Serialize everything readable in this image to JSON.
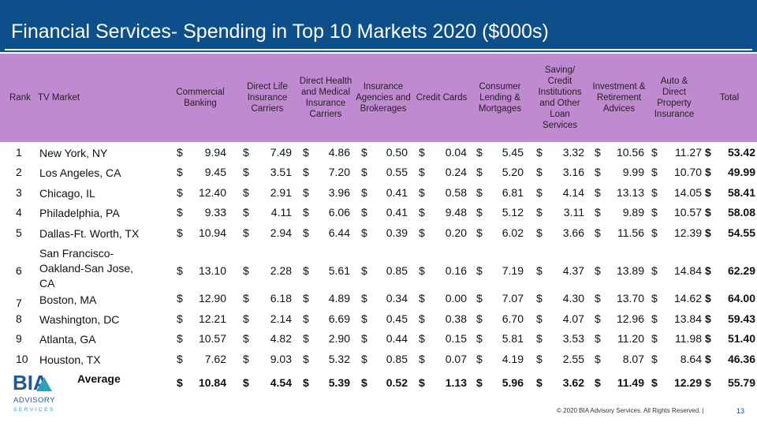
{
  "title": "Financial Services- Spending in Top 10 Markets 2020 ($000s)",
  "headers": {
    "rank": "Rank",
    "market": "TV Market",
    "commercial_banking": "Commercial\nBanking",
    "direct_life": "Direct Life\nInsurance\nCarriers",
    "direct_health": "Direct Health\nand Medical\nInsurance\nCarriers",
    "insurance_agencies": "Insurance\nAgencies and\nBrokerages",
    "credit_cards": "Credit Cards",
    "consumer_lending": "Consumer\nLending &\nMortgages",
    "saving_credit": "Saving/\nCredit\nInstitutions\nand Other\nLoan\nServices",
    "investment": "Investment &\nRetirement\nAdvices",
    "auto_home": "Auto &\nDirect\nProperty\nInsurance",
    "total": "Total"
  },
  "currency": "$",
  "rows": [
    {
      "rank": "1",
      "market": "New York, NY",
      "values": [
        "9.94",
        "7.49",
        "4.86",
        "0.50",
        "0.04",
        "5.45",
        "3.32",
        "10.56",
        "11.27"
      ],
      "total": "53.42"
    },
    {
      "rank": "2",
      "market": "Los Angeles, CA",
      "values": [
        "9.45",
        "3.51",
        "7.20",
        "0.55",
        "0.24",
        "5.20",
        "3.16",
        "9.99",
        "10.70"
      ],
      "total": "49.99"
    },
    {
      "rank": "3",
      "market": "Chicago, IL",
      "values": [
        "12.40",
        "2.91",
        "3.96",
        "0.41",
        "0.58",
        "6.81",
        "4.14",
        "13.13",
        "14.05"
      ],
      "total": "58.41"
    },
    {
      "rank": "4",
      "market": "Philadelphia, PA",
      "values": [
        "9.33",
        "4.11",
        "6.06",
        "0.41",
        "9.48",
        "5.12",
        "3.11",
        "9.89",
        "10.57"
      ],
      "total": "58.08"
    },
    {
      "rank": "5",
      "market": "Dallas-Ft. Worth, TX",
      "values": [
        "10.94",
        "2.94",
        "6.44",
        "0.39",
        "0.20",
        "6.02",
        "3.66",
        "11.56",
        "12.39"
      ],
      "total": "54.55"
    },
    {
      "rank": "6",
      "market": "San Francisco-\nOakland-San Jose,\nCA",
      "values": [
        "13.10",
        "2.28",
        "5.61",
        "0.85",
        "0.16",
        "7.19",
        "4.37",
        "13.89",
        "14.84"
      ],
      "total": "62.29"
    },
    {
      "rank": "7",
      "market": "Boston, MA",
      "values": [
        "12.90",
        "6.18",
        "4.89",
        "0.34",
        "0.00",
        "7.07",
        "4.30",
        "13.70",
        "14.62"
      ],
      "total": "64.00"
    },
    {
      "rank": "8",
      "market": "Washington, DC",
      "values": [
        "12.21",
        "2.14",
        "6.69",
        "0.45",
        "0.38",
        "6.70",
        "4.07",
        "12.96",
        "13.84"
      ],
      "total": "59.43"
    },
    {
      "rank": "9",
      "market": "Atlanta, GA",
      "values": [
        "10.57",
        "4.82",
        "2.90",
        "0.44",
        "0.15",
        "5.81",
        "3.53",
        "11.20",
        "11.98"
      ],
      "total": "51.40"
    },
    {
      "rank": "10",
      "market": "Houston, TX",
      "values": [
        "7.62",
        "9.03",
        "5.32",
        "0.85",
        "0.07",
        "4.19",
        "2.55",
        "8.07",
        "8.64"
      ],
      "total": "46.36"
    }
  ],
  "average": {
    "label": "Average",
    "values": [
      "10.84",
      "4.54",
      "5.39",
      "0.52",
      "1.13",
      "5.96",
      "3.62",
      "11.49",
      "12.29"
    ],
    "total": "55.79"
  },
  "logo": {
    "main": "BIA",
    "line1": "ADVISORY",
    "line2": "SERVICES"
  },
  "footer": "© 2020 BIA Advisory Services. All Rights Reserved. |",
  "page_number": "13",
  "colors": {
    "title_bar": "#0d4f8b",
    "header_fill": "#c08ad0",
    "logo_blue": "#1a5aa0",
    "logo_teal": "#2aa3b8"
  }
}
